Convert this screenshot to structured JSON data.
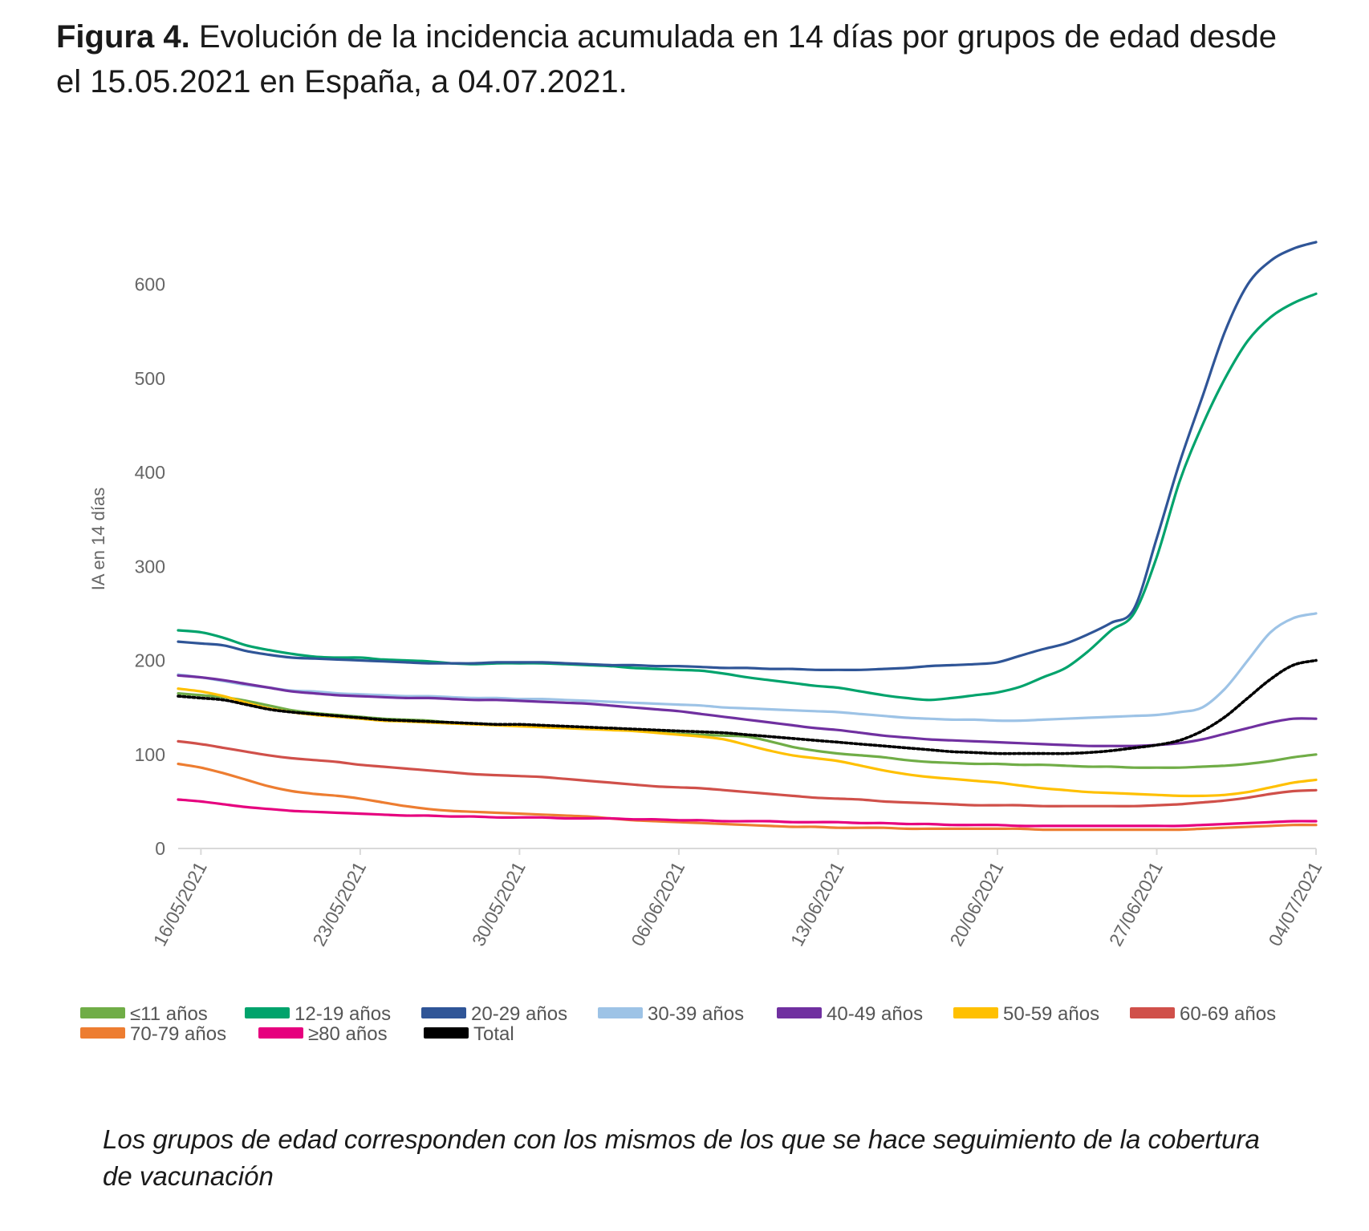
{
  "figure": {
    "label": "Figura 4.",
    "title": "Evolución de la incidencia acumulada en 14 días por grupos de edad desde el 15.05.2021 en España, a 04.07.2021.",
    "note": "Los grupos de edad corresponden con los mismos de los que se hace seguimiento de la cobertura de vacunación"
  },
  "chart_data": {
    "type": "line",
    "title": "",
    "xlabel": "",
    "ylabel": "IA en 14 días",
    "ylim": [
      0,
      650
    ],
    "yticks": [
      0,
      100,
      200,
      300,
      400,
      500,
      600
    ],
    "grid": false,
    "legend_position": "bottom",
    "x_dates": [
      "15/05/2021",
      "16/05/2021",
      "17/05/2021",
      "18/05/2021",
      "19/05/2021",
      "20/05/2021",
      "21/05/2021",
      "22/05/2021",
      "23/05/2021",
      "24/05/2021",
      "25/05/2021",
      "26/05/2021",
      "27/05/2021",
      "28/05/2021",
      "29/05/2021",
      "30/05/2021",
      "31/05/2021",
      "01/06/2021",
      "02/06/2021",
      "03/06/2021",
      "04/06/2021",
      "05/06/2021",
      "06/06/2021",
      "07/06/2021",
      "08/06/2021",
      "09/06/2021",
      "10/06/2021",
      "11/06/2021",
      "12/06/2021",
      "13/06/2021",
      "14/06/2021",
      "15/06/2021",
      "16/06/2021",
      "17/06/2021",
      "18/06/2021",
      "19/06/2021",
      "20/06/2021",
      "21/06/2021",
      "22/06/2021",
      "23/06/2021",
      "24/06/2021",
      "25/06/2021",
      "26/06/2021",
      "27/06/2021",
      "28/06/2021",
      "29/06/2021",
      "30/06/2021",
      "01/07/2021",
      "02/07/2021",
      "03/07/2021",
      "04/07/2021"
    ],
    "x_tick_labels": [
      "16/05/2021",
      "23/05/2021",
      "30/05/2021",
      "06/06/2021",
      "13/06/2021",
      "20/06/2021",
      "27/06/2021",
      "04/07/2021"
    ],
    "x_tick_dates": [
      "16/05/2021",
      "23/05/2021",
      "30/05/2021",
      "06/06/2021",
      "13/06/2021",
      "20/06/2021",
      "27/06/2021",
      "04/07/2021"
    ],
    "series": [
      {
        "name": "≤11 años",
        "color": "#70ad47",
        "dashed": false,
        "values": [
          165,
          163,
          161,
          157,
          152,
          147,
          144,
          142,
          140,
          138,
          137,
          136,
          134,
          133,
          132,
          131,
          130,
          129,
          128,
          127,
          126,
          124,
          122,
          121,
          120,
          119,
          114,
          108,
          104,
          101,
          99,
          97,
          94,
          92,
          91,
          90,
          90,
          89,
          89,
          88,
          87,
          87,
          86,
          86,
          86,
          87,
          88,
          90,
          93,
          97,
          100
        ]
      },
      {
        "name": "12-19 años",
        "color": "#00a36c",
        "dashed": false,
        "values": [
          232,
          230,
          224,
          216,
          211,
          207,
          204,
          203,
          203,
          201,
          200,
          199,
          197,
          196,
          197,
          197,
          197,
          196,
          195,
          194,
          192,
          191,
          190,
          189,
          186,
          182,
          179,
          176,
          173,
          171,
          167,
          163,
          160,
          158,
          160,
          163,
          166,
          172,
          182,
          192,
          210,
          232,
          250,
          310,
          390,
          450,
          500,
          540,
          565,
          580,
          590
        ]
      },
      {
        "name": "20-29 años",
        "color": "#2f5597",
        "dashed": false,
        "values": [
          220,
          218,
          216,
          210,
          206,
          203,
          202,
          201,
          200,
          199,
          198,
          197,
          197,
          197,
          198,
          198,
          198,
          197,
          196,
          195,
          195,
          194,
          194,
          193,
          192,
          192,
          191,
          191,
          190,
          190,
          190,
          191,
          192,
          194,
          195,
          196,
          198,
          205,
          212,
          218,
          228,
          240,
          255,
          330,
          410,
          480,
          550,
          600,
          625,
          638,
          645
        ]
      },
      {
        "name": "30-39 años",
        "color": "#9dc3e6",
        "dashed": false,
        "values": [
          185,
          182,
          178,
          174,
          171,
          168,
          167,
          165,
          164,
          163,
          162,
          162,
          161,
          160,
          160,
          159,
          159,
          158,
          157,
          156,
          155,
          154,
          153,
          152,
          150,
          149,
          148,
          147,
          146,
          145,
          143,
          141,
          139,
          138,
          137,
          137,
          136,
          136,
          137,
          138,
          139,
          140,
          141,
          142,
          145,
          150,
          170,
          200,
          230,
          245,
          250
        ]
      },
      {
        "name": "40-49 años",
        "color": "#7030a0",
        "dashed": false,
        "values": [
          184,
          182,
          179,
          175,
          171,
          167,
          165,
          163,
          162,
          161,
          160,
          160,
          159,
          158,
          158,
          157,
          156,
          155,
          154,
          152,
          150,
          148,
          146,
          143,
          140,
          137,
          134,
          131,
          128,
          126,
          123,
          120,
          118,
          116,
          115,
          114,
          113,
          112,
          111,
          110,
          109,
          109,
          109,
          110,
          112,
          116,
          122,
          128,
          134,
          138,
          138
        ]
      },
      {
        "name": "50-59 años",
        "color": "#ffc000",
        "dashed": false,
        "values": [
          170,
          167,
          162,
          155,
          149,
          145,
          142,
          140,
          138,
          136,
          135,
          134,
          133,
          132,
          131,
          130,
          129,
          128,
          127,
          126,
          125,
          123,
          121,
          119,
          116,
          110,
          104,
          99,
          96,
          93,
          88,
          83,
          79,
          76,
          74,
          72,
          70,
          67,
          64,
          62,
          60,
          59,
          58,
          57,
          56,
          56,
          57,
          60,
          65,
          70,
          73
        ]
      },
      {
        "name": "60-69 años",
        "color": "#d0504a",
        "dashed": false,
        "values": [
          114,
          111,
          107,
          103,
          99,
          96,
          94,
          92,
          89,
          87,
          85,
          83,
          81,
          79,
          78,
          77,
          76,
          74,
          72,
          70,
          68,
          66,
          65,
          64,
          62,
          60,
          58,
          56,
          54,
          53,
          52,
          50,
          49,
          48,
          47,
          46,
          46,
          46,
          45,
          45,
          45,
          45,
          45,
          46,
          47,
          49,
          51,
          54,
          58,
          61,
          62
        ]
      },
      {
        "name": "70-79 años",
        "color": "#ed7d31",
        "dashed": false,
        "values": [
          90,
          86,
          80,
          73,
          66,
          61,
          58,
          56,
          53,
          49,
          45,
          42,
          40,
          39,
          38,
          37,
          36,
          35,
          34,
          32,
          30,
          29,
          28,
          27,
          26,
          25,
          24,
          23,
          23,
          22,
          22,
          22,
          21,
          21,
          21,
          21,
          21,
          21,
          20,
          20,
          20,
          20,
          20,
          20,
          20,
          21,
          22,
          23,
          24,
          25,
          25
        ]
      },
      {
        "name": "≥80 años",
        "color": "#e6007e",
        "dashed": false,
        "values": [
          52,
          50,
          47,
          44,
          42,
          40,
          39,
          38,
          37,
          36,
          35,
          35,
          34,
          34,
          33,
          33,
          33,
          32,
          32,
          32,
          31,
          31,
          30,
          30,
          29,
          29,
          29,
          28,
          28,
          28,
          27,
          27,
          26,
          26,
          25,
          25,
          25,
          24,
          24,
          24,
          24,
          24,
          24,
          24,
          24,
          25,
          26,
          27,
          28,
          29,
          29
        ]
      },
      {
        "name": "Total",
        "color": "#000000",
        "dashed": true,
        "values": [
          162,
          160,
          158,
          153,
          148,
          145,
          143,
          141,
          139,
          137,
          136,
          135,
          134,
          133,
          132,
          132,
          131,
          130,
          129,
          128,
          127,
          126,
          125,
          124,
          123,
          121,
          119,
          117,
          115,
          113,
          111,
          109,
          107,
          105,
          103,
          102,
          101,
          101,
          101,
          101,
          102,
          104,
          107,
          110,
          115,
          125,
          140,
          160,
          180,
          195,
          200
        ]
      }
    ]
  }
}
